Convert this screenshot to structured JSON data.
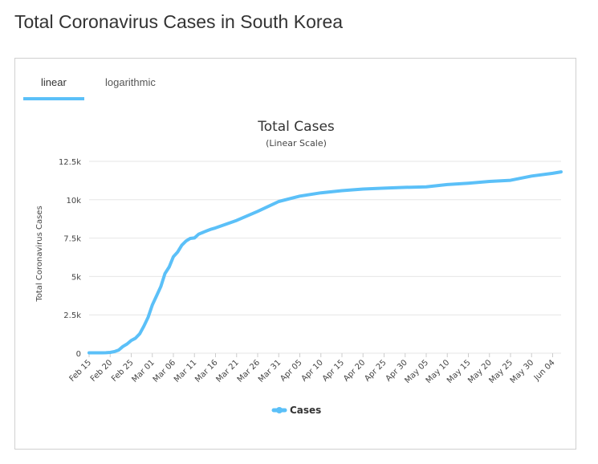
{
  "page": {
    "title": "Total Coronavirus Cases in South Korea"
  },
  "tabs": [
    {
      "label": "linear",
      "active": true
    },
    {
      "label": "logarithmic",
      "active": false
    }
  ],
  "colors": {
    "series": "#5bc0f8",
    "grid": "#e6e6e6"
  },
  "chart_data": {
    "type": "line",
    "title": "Total Cases",
    "subtitle": "(Linear Scale)",
    "ylabel": "Total Coronavirus Cases",
    "xlabel": "",
    "ylim": [
      0,
      12500
    ],
    "y_ticks": [
      0,
      2500,
      5000,
      7500,
      10000,
      12500
    ],
    "y_tick_labels": [
      "0",
      "2.5k",
      "5k",
      "7.5k",
      "10k",
      "12.5k"
    ],
    "x_tick_labels": [
      "Feb 15",
      "Feb 20",
      "Feb 25",
      "Mar 01",
      "Mar 06",
      "Mar 11",
      "Mar 16",
      "Mar 21",
      "Mar 26",
      "Mar 31",
      "Apr 05",
      "Apr 10",
      "Apr 15",
      "Apr 20",
      "Apr 25",
      "Apr 30",
      "May 05",
      "May 10",
      "May 15",
      "May 20",
      "May 25",
      "May 30",
      "Jun 04"
    ],
    "x_tick_step_days": 5,
    "x_start": "Feb 15",
    "legend": [
      "Cases"
    ],
    "series": [
      {
        "name": "Cases",
        "x_days": [
          0,
          2,
          4,
          5,
          6,
          7,
          8,
          9,
          10,
          11,
          12,
          13,
          14,
          15,
          16,
          17,
          18,
          19,
          20,
          21,
          22,
          23,
          24,
          25,
          26,
          27,
          28,
          29,
          30,
          35,
          40,
          45,
          50,
          55,
          60,
          65,
          70,
          75,
          80,
          85,
          90,
          95,
          100,
          105,
          110,
          112
        ],
        "values": [
          28,
          28,
          31,
          51,
          104,
          204,
          433,
          602,
          833,
          977,
          1261,
          1766,
          2337,
          3150,
          3736,
          4335,
          5186,
          5621,
          6284,
          6593,
          7041,
          7313,
          7478,
          7513,
          7755,
          7869,
          7979,
          8086,
          8162,
          8652,
          9241,
          9887,
          10237,
          10450,
          10591,
          10694,
          10752,
          10804,
          10840,
          10991,
          11078,
          11190,
          11265,
          11541,
          11719,
          11814
        ]
      }
    ]
  }
}
